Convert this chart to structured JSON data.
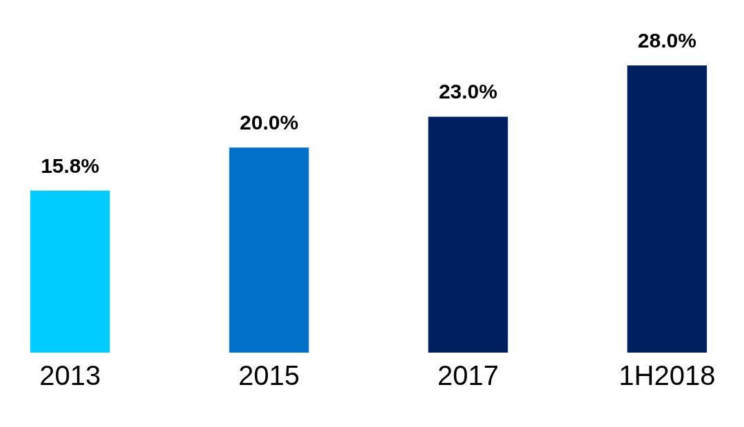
{
  "chart_data": {
    "type": "bar",
    "categories": [
      "2013",
      "2015",
      "2017",
      "1H2018"
    ],
    "values": [
      15.8,
      20.0,
      23.0,
      28.0
    ],
    "colors": [
      "#00ccff",
      "#0070c8",
      "#001f60",
      "#001f60"
    ],
    "value_labels": [
      "15.8%",
      "20.0%",
      "23.0%",
      "28.0%"
    ],
    "relative": false
  }
}
